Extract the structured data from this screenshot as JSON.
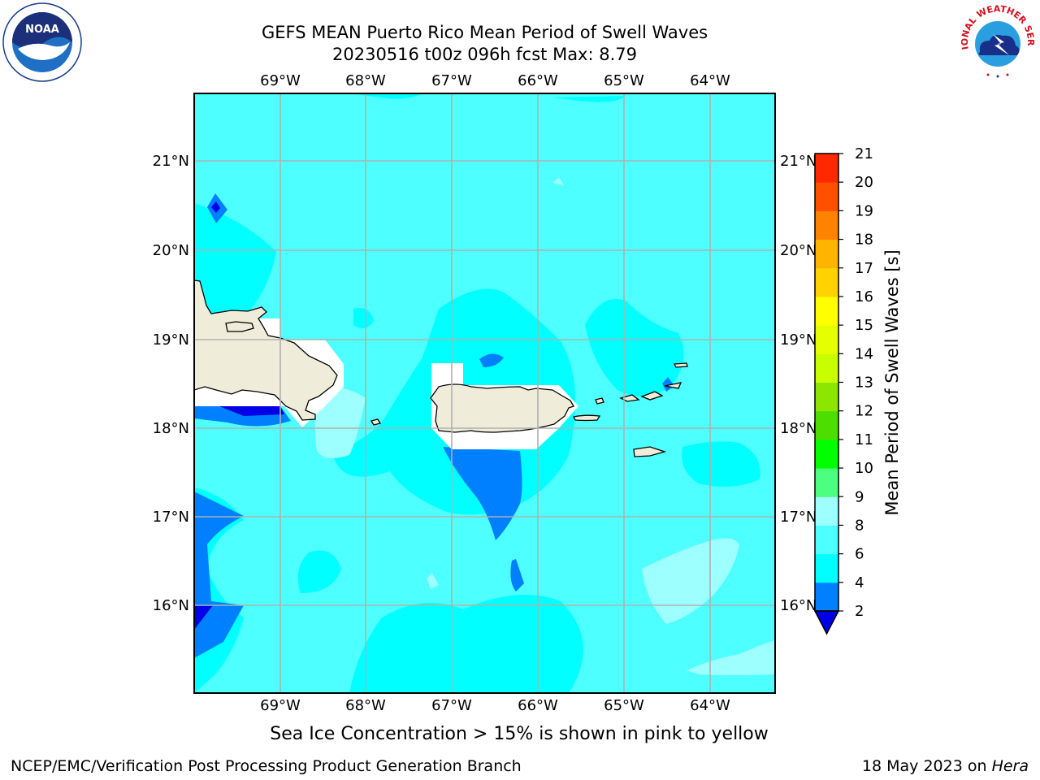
{
  "title_line1": "GEFS MEAN Puerto Rico Mean Period of Swell Waves",
  "title_line2": "20230516 t00z 096h fcst   Max: 8.79",
  "map": {
    "lon_labels": [
      "69°W",
      "68°W",
      "67°W",
      "66°W",
      "65°W",
      "64°W"
    ],
    "lat_labels": [
      "21°N",
      "20°N",
      "19°N",
      "18°N",
      "17°N",
      "16°N"
    ],
    "ocean_color": "#4dffff",
    "land_color": "#efedda"
  },
  "colorbar": {
    "label": "Mean Period of Swell Waves [s]",
    "ticks": [
      "2",
      "4",
      "6",
      "8",
      "9",
      "10",
      "11",
      "12",
      "13",
      "14",
      "15",
      "16",
      "17",
      "18",
      "19",
      "20",
      "21"
    ],
    "colors": [
      "#0080ff",
      "#00ffff",
      "#4dffff",
      "#9effff",
      "#4dff80",
      "#00ff00",
      "#4dde00",
      "#8ce600",
      "#c8ff00",
      "#e6ff00",
      "#ffff00",
      "#ffd200",
      "#ffb400",
      "#ff8200",
      "#ff5000",
      "#ff2800",
      "#ff0000"
    ],
    "under_color": "#0000e6"
  },
  "subcaption": "Sea Ice Concentration > 15% is shown in pink to yellow",
  "footer": {
    "branch": "NCEP/EMC/Verification Post Processing Product Generation Branch",
    "date_prefix": "18 May 2023 on ",
    "machine": "Hera"
  },
  "logos": {
    "noaa_text": "NOAA",
    "nws_text": "NATIONAL WEATHER SERVICE"
  }
}
